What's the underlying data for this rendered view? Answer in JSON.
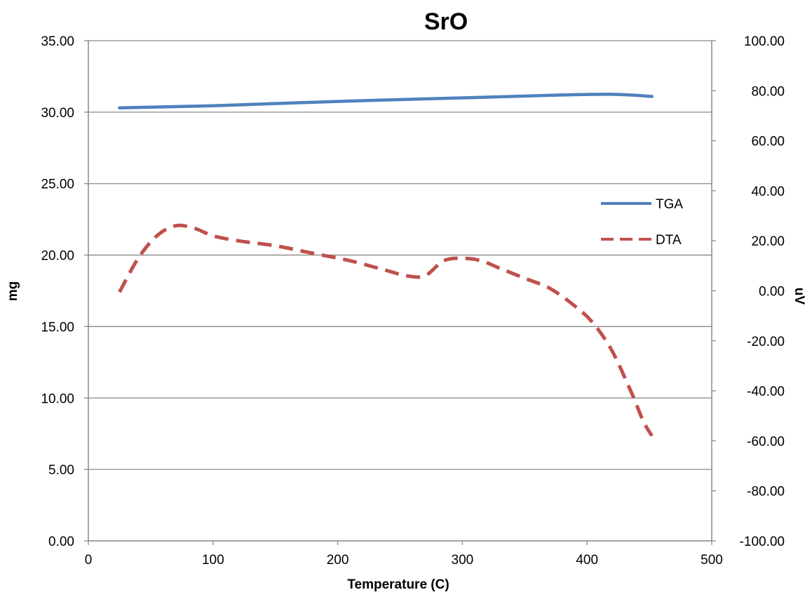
{
  "chart_data": {
    "type": "line",
    "title": "SrO",
    "xlabel": "Temperature (C)",
    "ylabel": "mg",
    "y2label": "uV",
    "xlim": [
      0,
      500
    ],
    "ylim": [
      0,
      35
    ],
    "y2lim": [
      -100,
      100
    ],
    "x_ticks": [
      "0",
      "100",
      "200",
      "300",
      "400",
      "500"
    ],
    "x_tick_values": [
      0,
      100,
      200,
      300,
      400,
      500
    ],
    "y_ticks": [
      "0.00",
      "5.00",
      "10.00",
      "15.00",
      "20.00",
      "25.00",
      "30.00",
      "35.00"
    ],
    "y_tick_values": [
      0,
      5,
      10,
      15,
      20,
      25,
      30,
      35
    ],
    "y2_ticks": [
      "-100.00",
      "-80.00",
      "-60.00",
      "-40.00",
      "-20.00",
      "0.00",
      "20.00",
      "40.00",
      "60.00",
      "80.00",
      "100.00"
    ],
    "y2_tick_values": [
      -100,
      -80,
      -60,
      -40,
      -20,
      0,
      20,
      40,
      60,
      80,
      100
    ],
    "grid": "horizontal",
    "legend_position": "right",
    "series": [
      {
        "name": "TGA",
        "axis": "left",
        "color": "#4F81BD",
        "style": "solid",
        "x": [
          25,
          100,
          200,
          300,
          380,
          420,
          452
        ],
        "y": [
          30.3,
          30.45,
          30.75,
          31.0,
          31.2,
          31.25,
          31.1
        ]
      },
      {
        "name": "DTA",
        "axis": "right",
        "color": "#C0504D",
        "style": "dashed",
        "x": [
          25,
          40,
          55,
          70,
          85,
          100,
          120,
          150,
          180,
          210,
          240,
          255,
          270,
          285,
          300,
          315,
          330,
          350,
          370,
          390,
          405,
          420,
          435,
          445,
          452
        ],
        "y": [
          -0.5,
          13,
          22,
          26,
          25,
          22,
          20,
          18,
          15,
          12,
          8,
          6,
          6,
          12,
          13,
          12,
          9,
          5,
          1,
          -6,
          -13,
          -24,
          -40,
          -52,
          -58
        ]
      }
    ]
  }
}
